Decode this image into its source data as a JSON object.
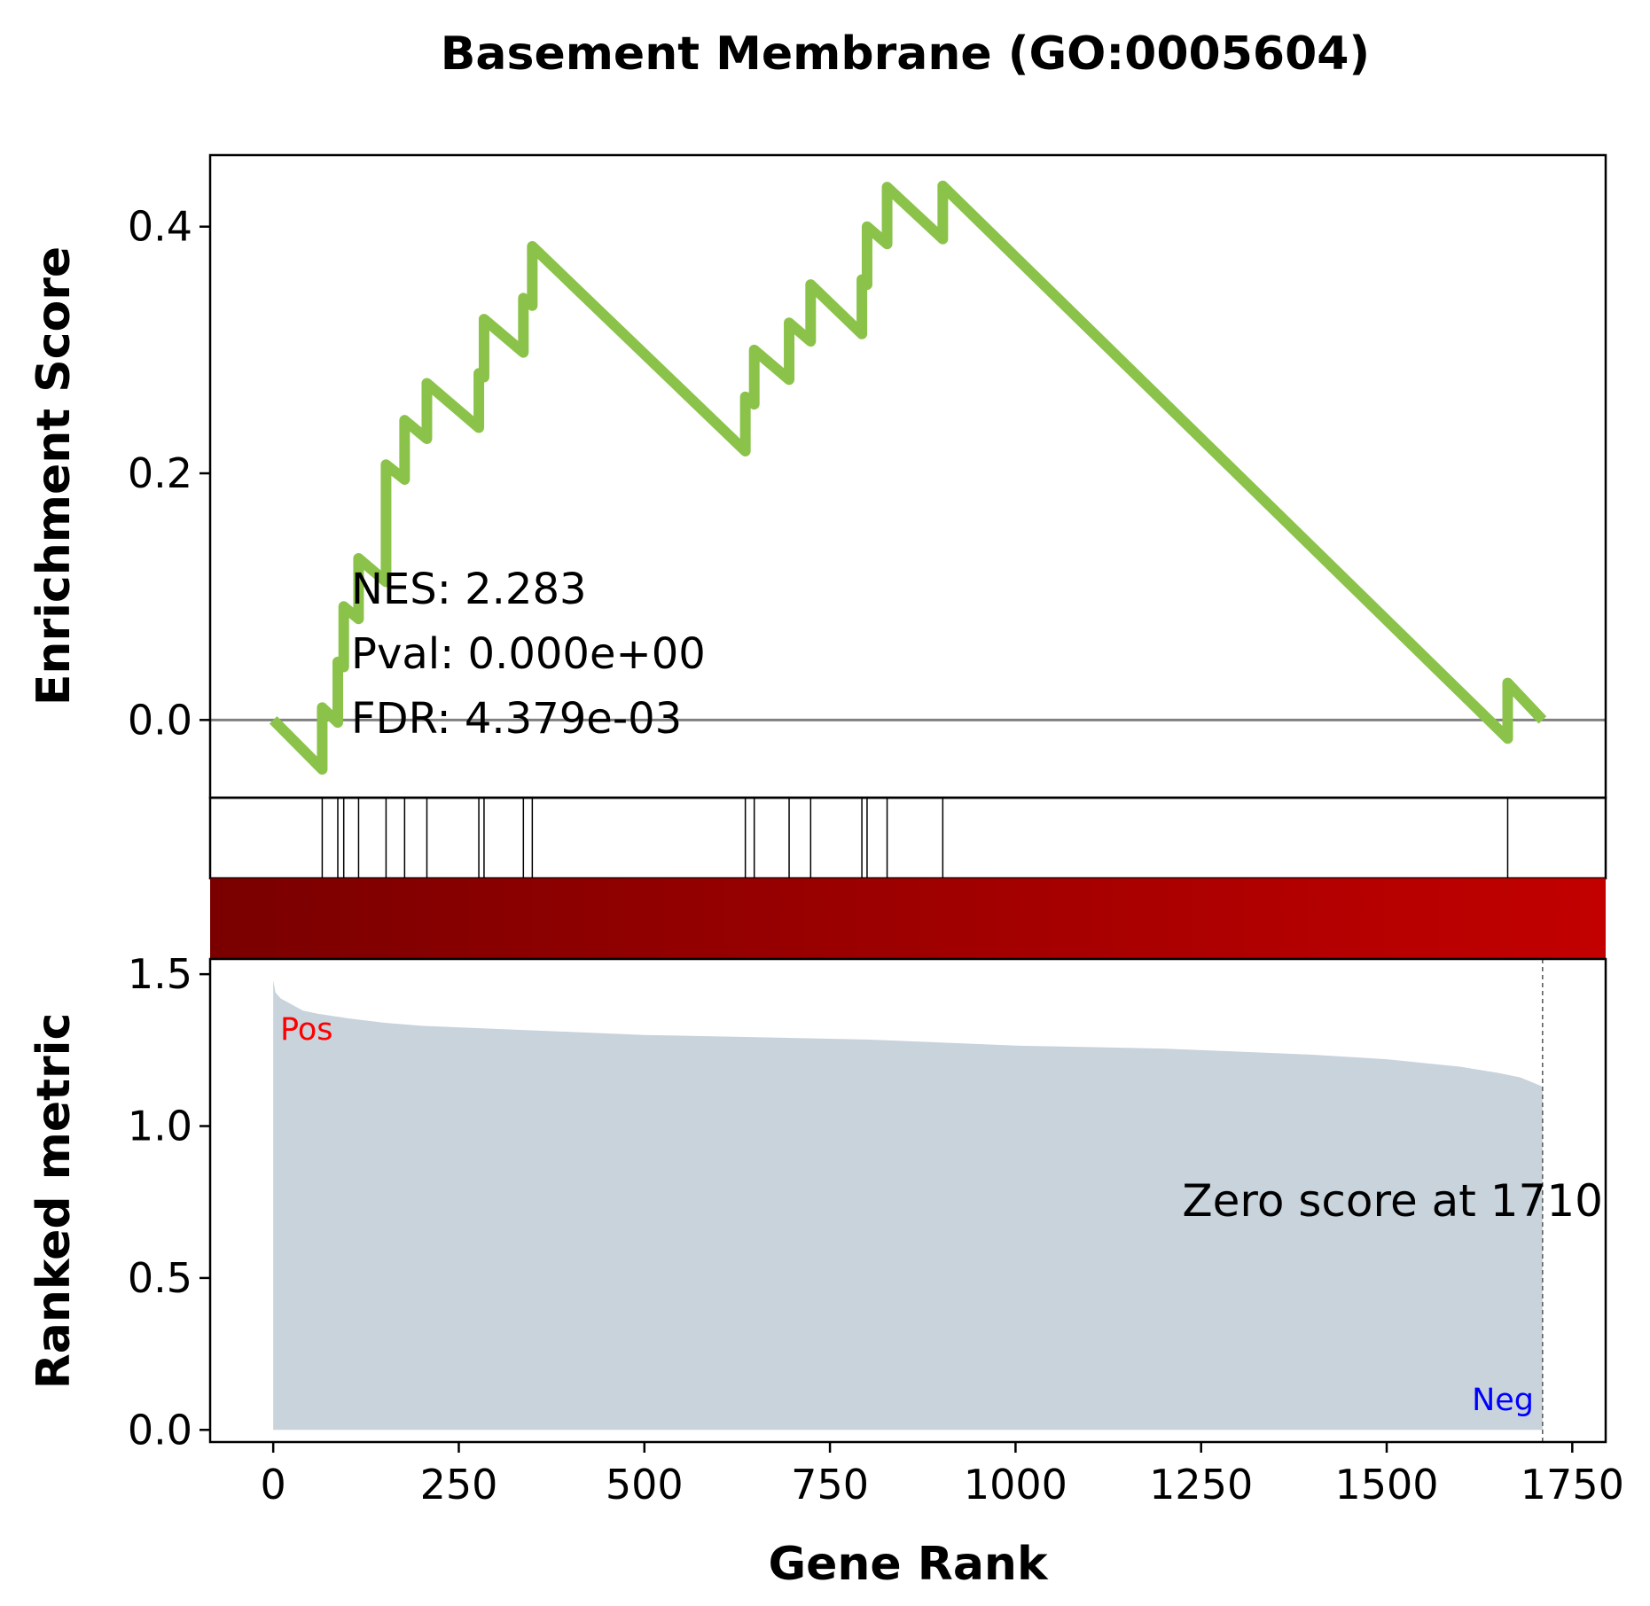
{
  "title": "Basement Membrane (GO:0005604)",
  "es_ylabel": "Enrichment Score",
  "rank_ylabel": "Ranked metric",
  "xlabel": "Gene Rank",
  "stats": {
    "nes": "NES: 2.283",
    "pval": "Pval: 0.000e+00",
    "fdr": "FDR: 4.379e-03"
  },
  "zero_score_label": "Zero score at 1710",
  "pos_label": "Pos",
  "neg_label": "Neg",
  "colors": {
    "es_line": "#8bc34a",
    "zero_line": "#808080",
    "metric_fill": "#c8d3dc",
    "pos": "#ff0000",
    "neg": "#0000ff",
    "heat_start": "#7a0000",
    "heat_end": "#c20000"
  },
  "chart_data": {
    "type": "line",
    "n_genes": 1711,
    "xlim": [
      -85,
      1795
    ],
    "x_ticks": [
      0,
      250,
      500,
      750,
      1000,
      1250,
      1500,
      1750
    ],
    "x_tick_labels": [
      "0",
      "250",
      "500",
      "750",
      "1000",
      "1250",
      "1500",
      "1750"
    ],
    "es": {
      "ylim": [
        -0.063,
        0.458
      ],
      "y_ticks": [
        0.0,
        0.2,
        0.4
      ],
      "y_tick_labels": [
        "0.0",
        "0.2",
        "0.4"
      ],
      "hit_ranks": [
        66,
        87,
        95,
        115,
        152,
        177,
        207,
        277,
        284,
        337,
        349,
        636,
        648,
        695,
        724,
        793,
        800,
        827,
        902,
        1663
      ],
      "running_es": [
        [
          0,
          0.0
        ],
        [
          66,
          -0.04
        ],
        [
          66,
          0.01
        ],
        [
          87,
          -0.002
        ],
        [
          87,
          0.047
        ],
        [
          95,
          0.043
        ],
        [
          95,
          0.092
        ],
        [
          115,
          0.082
        ],
        [
          115,
          0.131
        ],
        [
          152,
          0.112
        ],
        [
          152,
          0.207
        ],
        [
          177,
          0.195
        ],
        [
          177,
          0.243
        ],
        [
          207,
          0.228
        ],
        [
          207,
          0.273
        ],
        [
          277,
          0.237
        ],
        [
          277,
          0.281
        ],
        [
          284,
          0.278
        ],
        [
          284,
          0.325
        ],
        [
          337,
          0.298
        ],
        [
          337,
          0.342
        ],
        [
          349,
          0.336
        ],
        [
          349,
          0.384
        ],
        [
          636,
          0.218
        ],
        [
          636,
          0.262
        ],
        [
          648,
          0.256
        ],
        [
          648,
          0.3
        ],
        [
          695,
          0.276
        ],
        [
          695,
          0.322
        ],
        [
          724,
          0.307
        ],
        [
          724,
          0.353
        ],
        [
          793,
          0.313
        ],
        [
          793,
          0.357
        ],
        [
          800,
          0.353
        ],
        [
          800,
          0.4
        ],
        [
          827,
          0.386
        ],
        [
          827,
          0.432
        ],
        [
          902,
          0.39
        ],
        [
          902,
          0.433
        ],
        [
          1663,
          -0.015
        ],
        [
          1663,
          0.03
        ],
        [
          1710,
          0.0
        ]
      ]
    },
    "ranked_metric": {
      "ylim": [
        -0.04,
        1.55
      ],
      "y_ticks": [
        0.0,
        0.5,
        1.0,
        1.5
      ],
      "y_tick_labels": [
        "0.0",
        "0.5",
        "1.0",
        "1.5"
      ],
      "zero_score_at": 1710,
      "curve": [
        [
          0,
          1.48
        ],
        [
          3,
          1.44
        ],
        [
          10,
          1.42
        ],
        [
          25,
          1.4
        ],
        [
          40,
          1.38
        ],
        [
          60,
          1.37
        ],
        [
          100,
          1.355
        ],
        [
          150,
          1.34
        ],
        [
          200,
          1.33
        ],
        [
          300,
          1.32
        ],
        [
          400,
          1.31
        ],
        [
          500,
          1.3
        ],
        [
          600,
          1.295
        ],
        [
          700,
          1.29
        ],
        [
          800,
          1.285
        ],
        [
          900,
          1.275
        ],
        [
          1000,
          1.265
        ],
        [
          1100,
          1.26
        ],
        [
          1200,
          1.255
        ],
        [
          1300,
          1.245
        ],
        [
          1400,
          1.235
        ],
        [
          1500,
          1.22
        ],
        [
          1600,
          1.195
        ],
        [
          1650,
          1.175
        ],
        [
          1680,
          1.16
        ],
        [
          1700,
          1.14
        ],
        [
          1710,
          1.13
        ]
      ]
    }
  }
}
